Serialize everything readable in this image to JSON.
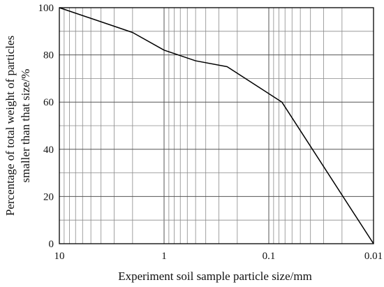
{
  "chart_data": {
    "type": "line",
    "title": "",
    "xlabel": "Experiment soil sample particle size/mm",
    "ylabel_lines": [
      "Percentage of total weight of particles",
      "smaller than that size/%"
    ],
    "x_scale": "log",
    "x_reversed": true,
    "xlim": [
      10,
      0.01
    ],
    "ylim": [
      0,
      100
    ],
    "x_ticks": [
      10,
      1,
      0.1,
      0.01
    ],
    "x_tick_labels": [
      "10",
      "1",
      "0.1",
      "0.01"
    ],
    "y_ticks": [
      0,
      20,
      40,
      60,
      80,
      100
    ],
    "y_tick_labels": [
      "0",
      "20",
      "40",
      "60",
      "80",
      "100"
    ],
    "grid": true,
    "series": [
      {
        "x": [
          10,
          2,
          1,
          0.5,
          0.25,
          0.075,
          0.01
        ],
        "y": [
          100,
          89.5,
          82,
          77.5,
          75,
          60,
          0
        ]
      }
    ]
  }
}
